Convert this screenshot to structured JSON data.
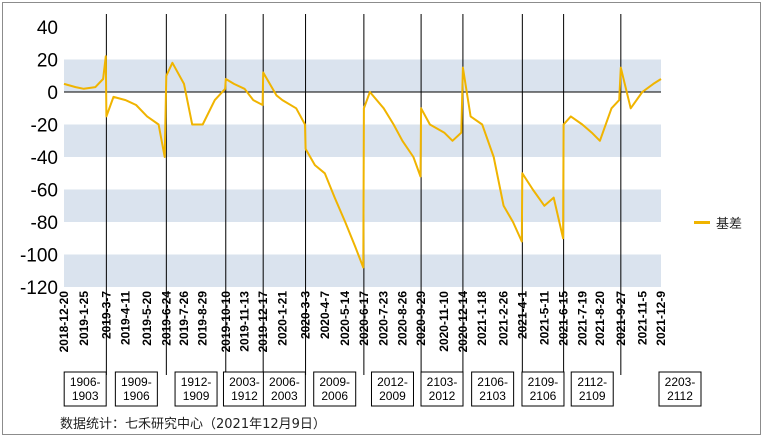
{
  "chart_data": {
    "type": "line",
    "title": "",
    "xlabel": "",
    "ylabel": "",
    "ylim": [
      -120,
      40
    ],
    "yticks": [
      40,
      20,
      0,
      -20,
      -40,
      -60,
      -80,
      -100,
      -120
    ],
    "grid": "horizontal bands",
    "legend_position": "right",
    "x_tick_labels": [
      "2018-12-20",
      "2019-1-25",
      "2019-3-7",
      "2019-4-11",
      "2019-5-20",
      "2019-6-24",
      "2019-7-26",
      "2019-8-29",
      "2019-10-10",
      "2019-11-13",
      "2019-12-17",
      "2020-1-21",
      "2020-3-3",
      "2020-4-7",
      "2020-5-14",
      "2020-6-17",
      "2020-7-23",
      "2020-8-26",
      "2020-9-29",
      "2020-11-10",
      "2020-12-14",
      "2021-1-18",
      "2021-2-26",
      "2021-4-1",
      "2021-5-11",
      "2021-6-15",
      "2021-7-19",
      "2021-8-20",
      "2021-9-27",
      "2021-11-5",
      "2021-12-9"
    ],
    "contract_labels": [
      "1906-1903",
      "1909-1906",
      "1912-1909",
      "2003-1912",
      "2006-2003",
      "2009-2006",
      "2012-2009",
      "2103-2012",
      "2106-2103",
      "2109-2106",
      "2112-2109",
      "2203-2112"
    ],
    "contract_label_lines": [
      [
        "1906-",
        "1903"
      ],
      [
        "1909-",
        "1906"
      ],
      [
        "1912-",
        "1909"
      ],
      [
        "2003-",
        "1912"
      ],
      [
        "2006-",
        "2003"
      ],
      [
        "2009-",
        "2006"
      ],
      [
        "2012-",
        "2009"
      ],
      [
        "2103-",
        "2012"
      ],
      [
        "2106-",
        "2103"
      ],
      [
        "2109-",
        "2106"
      ],
      [
        "2112-",
        "2109"
      ],
      [
        "2203-",
        "2112"
      ]
    ],
    "roll_dates": [
      "2019-3-7",
      "2019-6-24",
      "2019-10-10",
      "2019-12-17",
      "2020-3-3",
      "2020-6-17",
      "2020-9-29",
      "2020-12-14",
      "2021-4-1",
      "2021-6-15",
      "2021-9-27"
    ],
    "series": [
      {
        "name": "基差",
        "color": "#f0b400",
        "x": [
          "2018-12-20",
          "2019-1-10",
          "2019-1-25",
          "2019-2-15",
          "2019-3-1",
          "2019-3-6",
          "2019-3-7",
          "2019-3-20",
          "2019-4-11",
          "2019-4-30",
          "2019-5-20",
          "2019-6-10",
          "2019-6-21",
          "2019-6-24",
          "2019-7-5",
          "2019-7-26",
          "2019-8-10",
          "2019-8-29",
          "2019-9-20",
          "2019-10-9",
          "2019-10-10",
          "2019-10-25",
          "2019-11-13",
          "2019-11-29",
          "2019-12-16",
          "2019-12-17",
          "2020-1-10",
          "2020-1-21",
          "2020-2-15",
          "2020-3-2",
          "2020-3-3",
          "2020-3-20",
          "2020-4-7",
          "2020-4-25",
          "2020-5-14",
          "2020-6-1",
          "2020-6-16",
          "2020-6-17",
          "2020-6-28",
          "2020-7-23",
          "2020-8-10",
          "2020-8-26",
          "2020-9-15",
          "2020-9-28",
          "2020-9-29",
          "2020-10-15",
          "2020-11-10",
          "2020-11-25",
          "2020-12-11",
          "2020-12-14",
          "2020-12-28",
          "2021-1-18",
          "2021-2-8",
          "2021-2-26",
          "2021-3-15",
          "2021-3-31",
          "2021-4-1",
          "2021-4-20",
          "2021-5-11",
          "2021-5-28",
          "2021-6-14",
          "2021-6-15",
          "2021-6-28",
          "2021-7-19",
          "2021-8-5",
          "2021-8-20",
          "2021-9-10",
          "2021-9-24",
          "2021-9-27",
          "2021-10-15",
          "2021-11-5",
          "2021-11-25",
          "2021-12-9"
        ],
        "values": [
          5,
          3,
          2,
          3,
          8,
          22,
          -15,
          -3,
          -5,
          -8,
          -15,
          -20,
          -40,
          10,
          18,
          5,
          -20,
          -20,
          -5,
          2,
          8,
          5,
          2,
          -5,
          -8,
          12,
          -2,
          -5,
          -10,
          -20,
          -35,
          -45,
          -50,
          -65,
          -80,
          -95,
          -108,
          -10,
          0,
          -10,
          -20,
          -30,
          -40,
          -52,
          -10,
          -20,
          -25,
          -30,
          -25,
          15,
          -15,
          -20,
          -40,
          -70,
          -80,
          -92,
          -50,
          -60,
          -70,
          -65,
          -90,
          -20,
          -15,
          -20,
          -25,
          -30,
          -10,
          -5,
          15,
          -10,
          0,
          5,
          8
        ]
      }
    ]
  },
  "legend": {
    "label": "基差"
  },
  "source": "数据统计：七禾研究中心（2021年12月9日）"
}
